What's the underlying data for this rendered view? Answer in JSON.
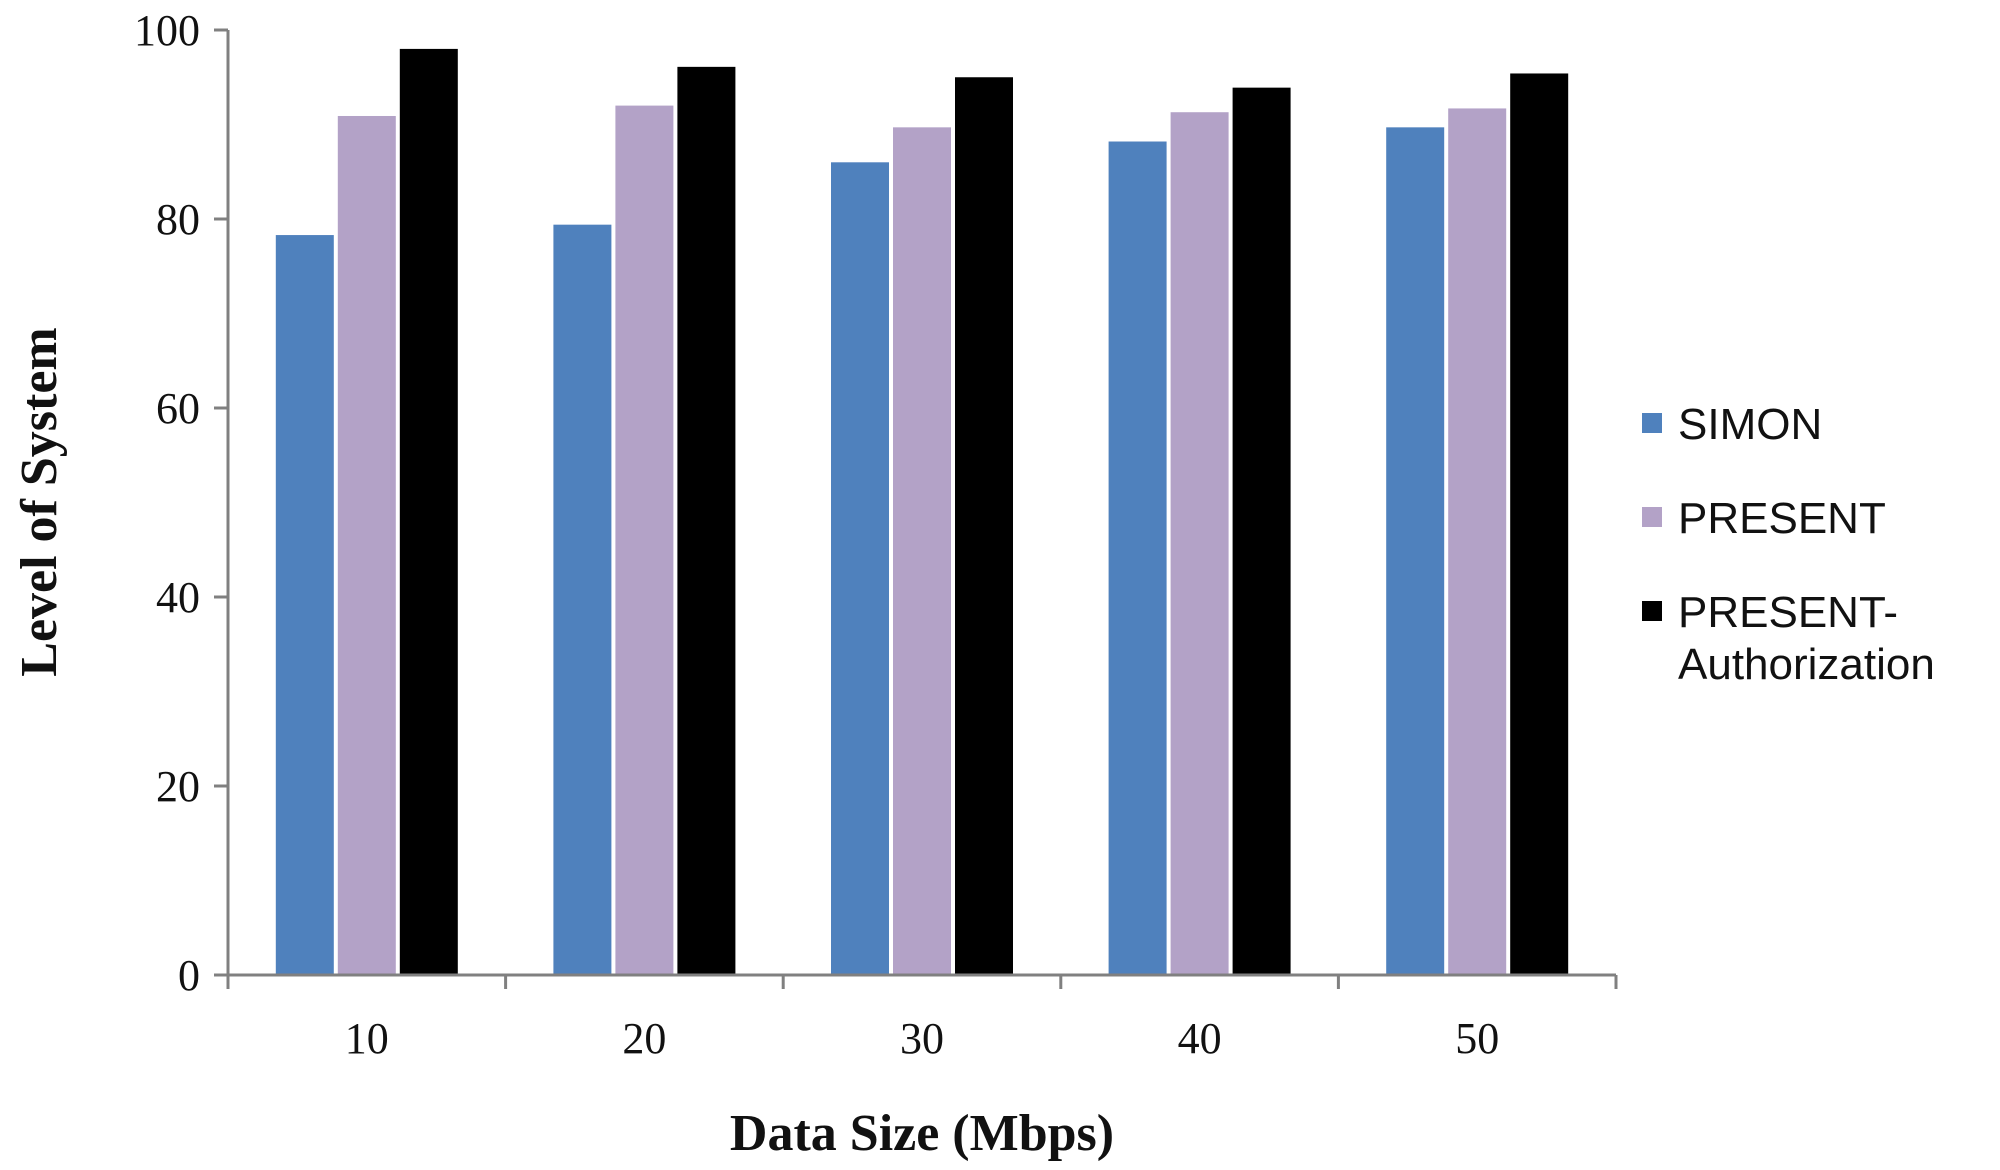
{
  "chart_data": {
    "type": "bar",
    "categories": [
      "10",
      "20",
      "30",
      "40",
      "50"
    ],
    "series": [
      {
        "name": "SIMON",
        "color": "#4f81bd",
        "values": [
          78.3,
          79.4,
          86.0,
          88.2,
          89.7
        ]
      },
      {
        "name": "PRESENT",
        "color": "#b3a2c7",
        "values": [
          90.9,
          92.0,
          89.7,
          91.3,
          91.7
        ]
      },
      {
        "name": "PRESENT-Authorization",
        "label_lines": [
          "PRESENT-",
          "Authorization"
        ],
        "color": "#000000",
        "values": [
          98.0,
          96.1,
          95.0,
          93.9,
          95.4
        ]
      }
    ],
    "xlabel": "Data Size (Mbps)",
    "ylabel": "Level of System",
    "ylim": [
      0,
      100
    ],
    "yticks": [
      0,
      20,
      40,
      60,
      80,
      100
    ],
    "grid": false,
    "legend_position": "right"
  }
}
